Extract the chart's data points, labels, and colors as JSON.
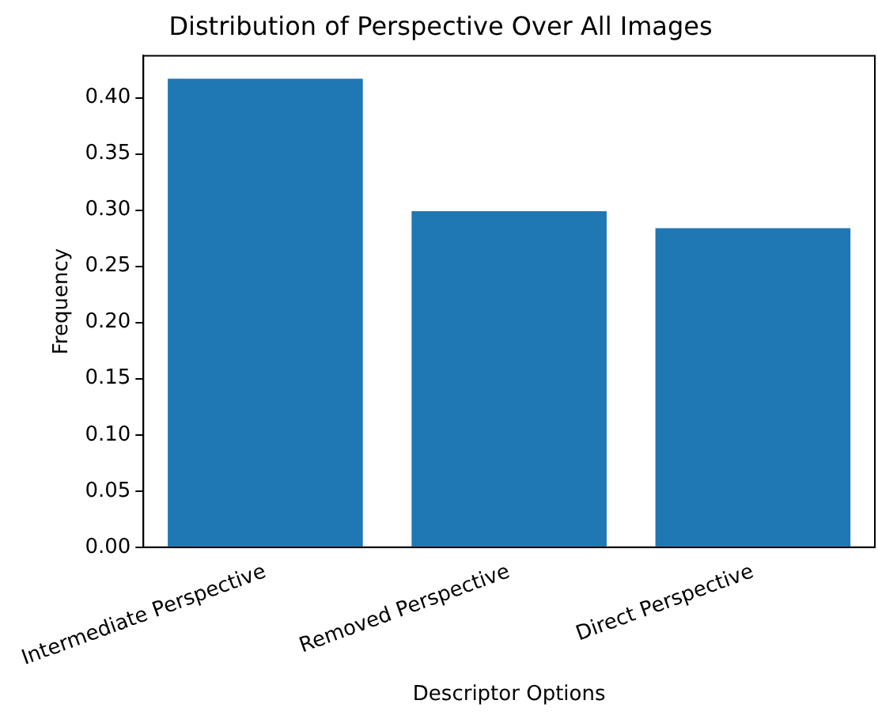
{
  "chart_data": {
    "type": "bar",
    "title": "Distribution of Perspective Over All Images",
    "xlabel": "Descriptor Options",
    "ylabel": "Frequency",
    "categories": [
      "Intermediate Perspective",
      "Removed Perspective",
      "Direct Perspective"
    ],
    "values": [
      0.417,
      0.299,
      0.284
    ],
    "color": "#1f77b4",
    "ylim": [
      0,
      0.4375
    ],
    "yticks": [
      {
        "value": 0,
        "label": "0.00"
      },
      {
        "value": 0.05,
        "label": "0.05"
      },
      {
        "value": 0.1,
        "label": "0.10"
      },
      {
        "value": 0.15,
        "label": "0.15"
      },
      {
        "value": 0.2,
        "label": "0.20"
      },
      {
        "value": 0.25,
        "label": "0.25"
      },
      {
        "value": 0.3,
        "label": "0.30"
      },
      {
        "value": 0.35,
        "label": "0.35"
      },
      {
        "value": 0.4,
        "label": "0.40"
      }
    ],
    "grid": false,
    "legend": false
  }
}
